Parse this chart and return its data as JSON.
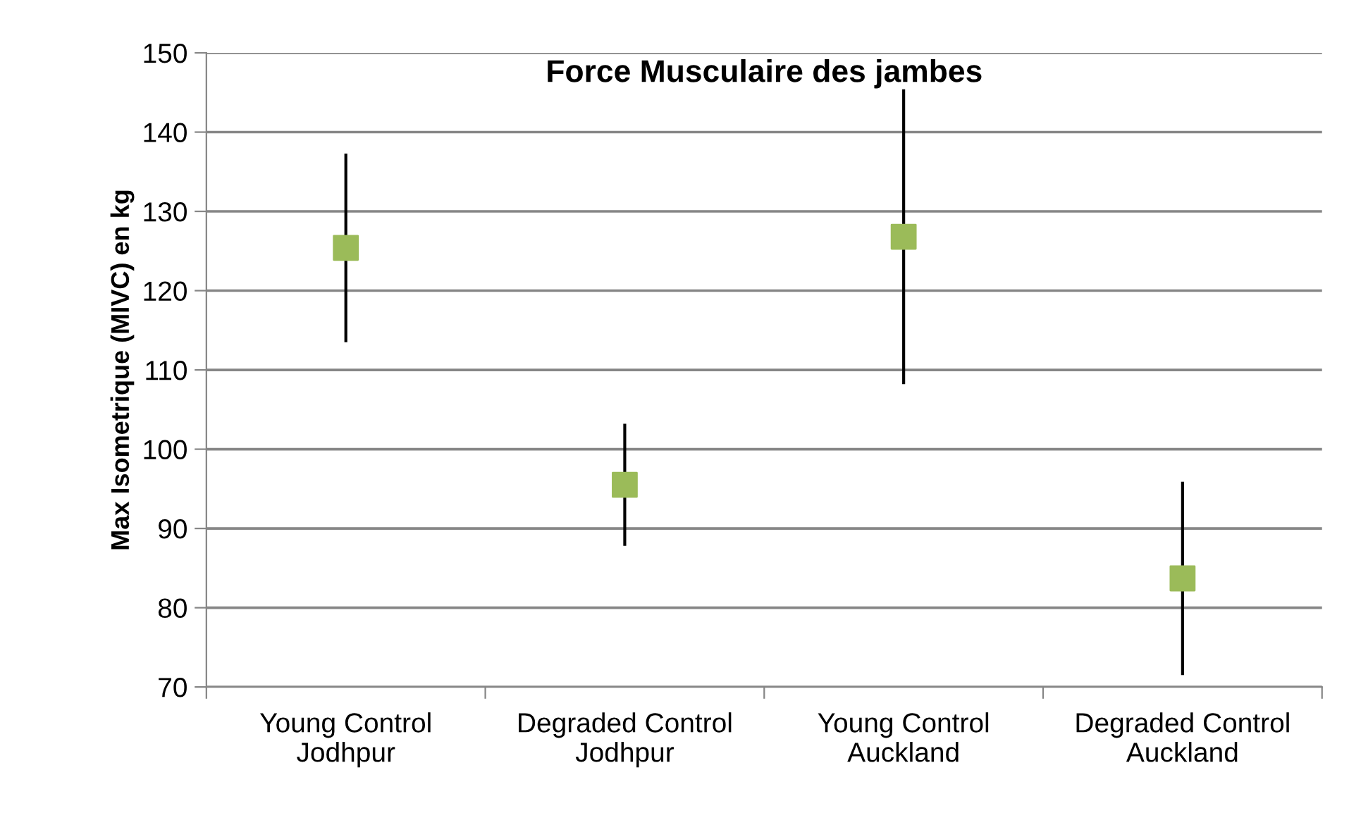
{
  "chart_data": {
    "type": "scatter",
    "title": "Force Musculaire des jambes",
    "ylabel": "Max Isometrique (MIVC) en kg",
    "categories": [
      "Young Control\nJodhpur",
      "Degraded Control\nJodhpur",
      "Young Control\nAuckland",
      "Degraded Control\nAuckland"
    ],
    "series": [
      {
        "color": "#9bbb59",
        "values": [
          125.4,
          95.5,
          126.8,
          83.7
        ],
        "errors": [
          11.9,
          7.7,
          18.6,
          12.2
        ]
      }
    ],
    "ylim": [
      70,
      150
    ],
    "yticks": [
      70,
      80,
      90,
      100,
      110,
      120,
      130,
      140,
      150
    ],
    "grid": "y",
    "marker": "square"
  }
}
